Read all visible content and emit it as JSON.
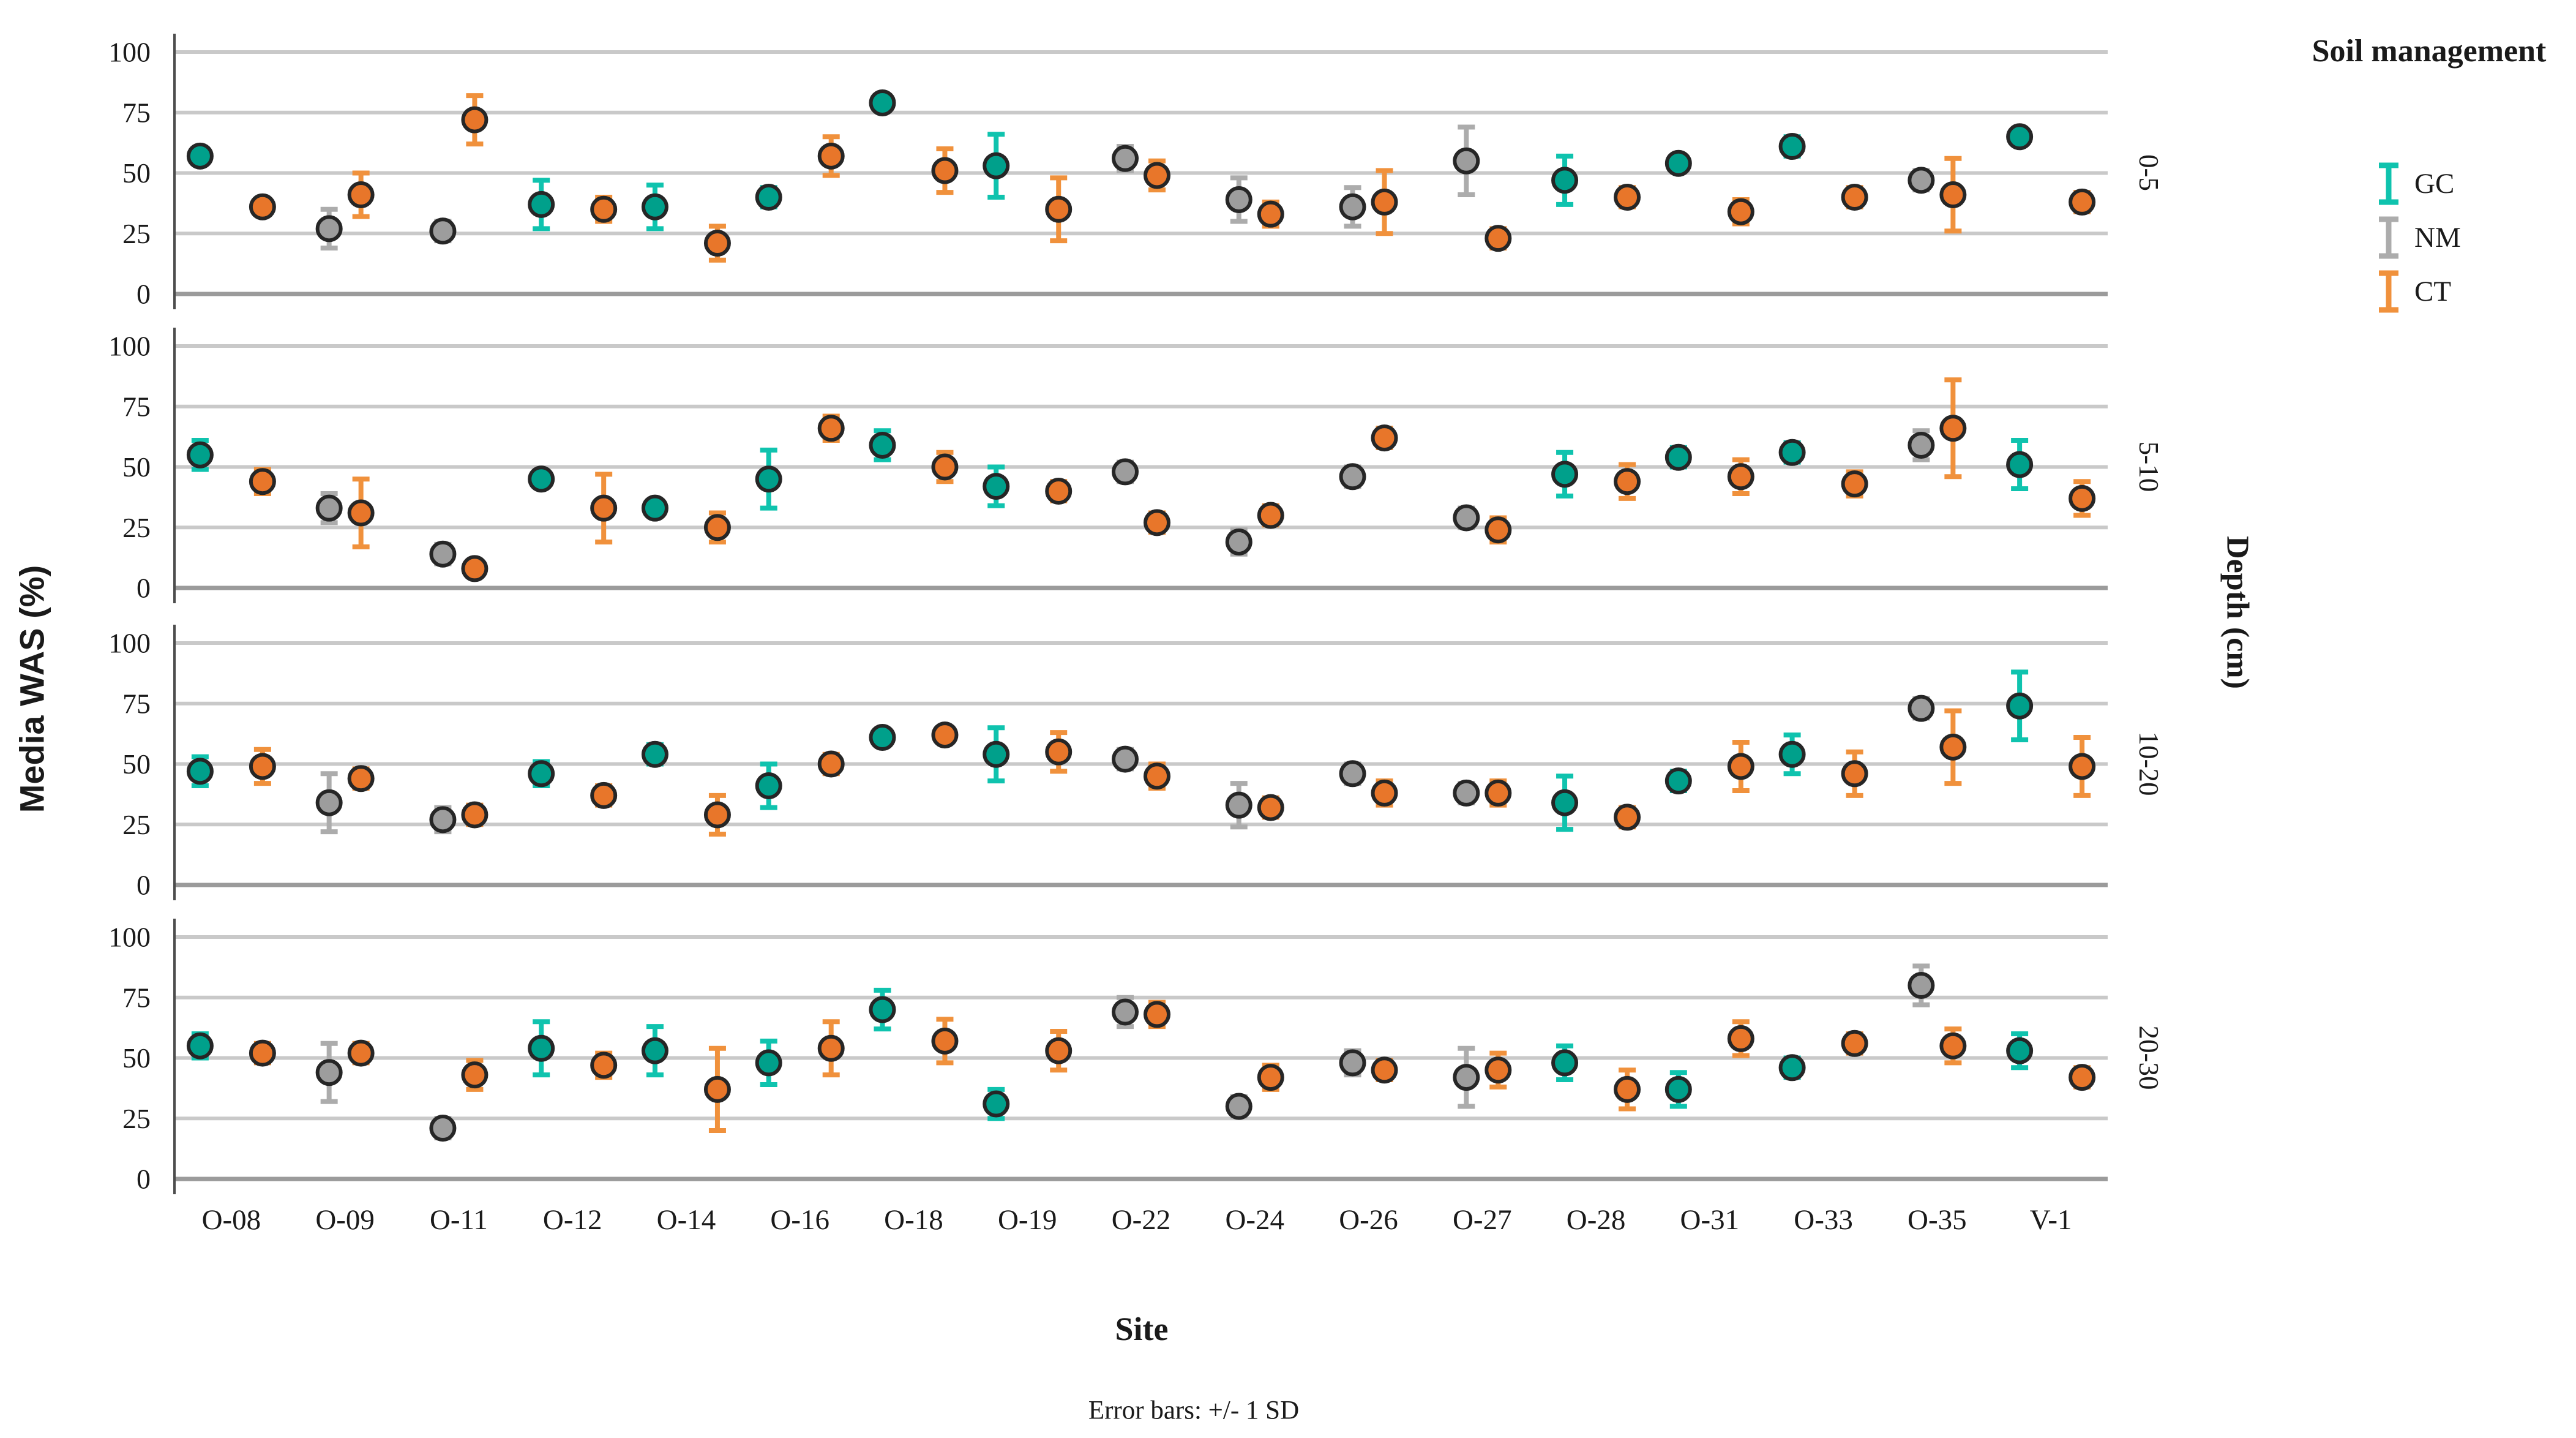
{
  "chart_data": {
    "type": "scatter",
    "title": "",
    "xlabel": "Site",
    "ylabel": "Media WAS (%)",
    "right_axis_label": "Depth (cm)",
    "footnote": "Error bars: +/- 1 SD",
    "ylim": [
      0,
      100
    ],
    "yticks": [
      0,
      25,
      50,
      75,
      100
    ],
    "grid": true,
    "legend": {
      "title": "Soil management",
      "position": "top-right",
      "entries": [
        {
          "label": "GC",
          "color": "#00A08B",
          "bar_color": "#0FC3AE"
        },
        {
          "label": "NM",
          "color": "#9D9D9D",
          "bar_color": "#ACACAC"
        },
        {
          "label": "CT",
          "color": "#E8762A",
          "bar_color": "#F0913C"
        }
      ]
    },
    "groups": {
      "GC": {
        "fill": "#00A08B",
        "bar": "#0FC3AE"
      },
      "NM": {
        "fill": "#9D9D9D",
        "bar": "#ACACAC"
      },
      "CT": {
        "fill": "#E8762A",
        "bar": "#F0913C"
      }
    },
    "sites": [
      "O-08",
      "O-09",
      "O-11",
      "O-12",
      "O-14",
      "O-16",
      "O-18",
      "O-19",
      "O-22",
      "O-24",
      "O-26",
      "O-27",
      "O-28",
      "O-31",
      "O-33",
      "O-35",
      "V-1"
    ],
    "panels": [
      {
        "depth": "0-5",
        "points": [
          {
            "site": "O-08",
            "group": "GC",
            "mean": 57,
            "sd": 3
          },
          {
            "site": "O-08",
            "group": "CT",
            "mean": 36,
            "sd": 3
          },
          {
            "site": "O-09",
            "group": "NM",
            "mean": 27,
            "sd": 8
          },
          {
            "site": "O-09",
            "group": "CT",
            "mean": 41,
            "sd": 9
          },
          {
            "site": "O-11",
            "group": "NM",
            "mean": 26,
            "sd": 4
          },
          {
            "site": "O-11",
            "group": "CT",
            "mean": 72,
            "sd": 10
          },
          {
            "site": "O-12",
            "group": "GC",
            "mean": 37,
            "sd": 10
          },
          {
            "site": "O-12",
            "group": "CT",
            "mean": 35,
            "sd": 5
          },
          {
            "site": "O-14",
            "group": "GC",
            "mean": 36,
            "sd": 9
          },
          {
            "site": "O-14",
            "group": "CT",
            "mean": 21,
            "sd": 7
          },
          {
            "site": "O-16",
            "group": "GC",
            "mean": 40,
            "sd": 4
          },
          {
            "site": "O-16",
            "group": "CT",
            "mean": 57,
            "sd": 8
          },
          {
            "site": "O-18",
            "group": "GC",
            "mean": 79,
            "sd": 3
          },
          {
            "site": "O-18",
            "group": "CT",
            "mean": 51,
            "sd": 9
          },
          {
            "site": "O-19",
            "group": "GC",
            "mean": 53,
            "sd": 13
          },
          {
            "site": "O-19",
            "group": "CT",
            "mean": 35,
            "sd": 13
          },
          {
            "site": "O-22",
            "group": "NM",
            "mean": 56,
            "sd": 5
          },
          {
            "site": "O-22",
            "group": "CT",
            "mean": 49,
            "sd": 6
          },
          {
            "site": "O-24",
            "group": "NM",
            "mean": 39,
            "sd": 9
          },
          {
            "site": "O-24",
            "group": "CT",
            "mean": 33,
            "sd": 5
          },
          {
            "site": "O-26",
            "group": "NM",
            "mean": 36,
            "sd": 8
          },
          {
            "site": "O-26",
            "group": "CT",
            "mean": 38,
            "sd": 13
          },
          {
            "site": "O-27",
            "group": "NM",
            "mean": 55,
            "sd": 14
          },
          {
            "site": "O-27",
            "group": "CT",
            "mean": 23,
            "sd": 4
          },
          {
            "site": "O-28",
            "group": "GC",
            "mean": 47,
            "sd": 10
          },
          {
            "site": "O-28",
            "group": "CT",
            "mean": 40,
            "sd": 4
          },
          {
            "site": "O-31",
            "group": "GC",
            "mean": 54,
            "sd": 3
          },
          {
            "site": "O-31",
            "group": "CT",
            "mean": 34,
            "sd": 5
          },
          {
            "site": "O-33",
            "group": "GC",
            "mean": 61,
            "sd": 4
          },
          {
            "site": "O-33",
            "group": "CT",
            "mean": 40,
            "sd": 4
          },
          {
            "site": "O-35",
            "group": "NM",
            "mean": 47,
            "sd": 4
          },
          {
            "site": "O-35",
            "group": "CT",
            "mean": 41,
            "sd": 15
          },
          {
            "site": "V-1",
            "group": "GC",
            "mean": 65,
            "sd": 3
          },
          {
            "site": "V-1",
            "group": "CT",
            "mean": 38,
            "sd": 4
          }
        ]
      },
      {
        "depth": "5-10",
        "points": [
          {
            "site": "O-08",
            "group": "GC",
            "mean": 55,
            "sd": 6
          },
          {
            "site": "O-08",
            "group": "CT",
            "mean": 44,
            "sd": 5
          },
          {
            "site": "O-09",
            "group": "NM",
            "mean": 33,
            "sd": 6
          },
          {
            "site": "O-09",
            "group": "CT",
            "mean": 31,
            "sd": 14
          },
          {
            "site": "O-11",
            "group": "NM",
            "mean": 14,
            "sd": 4
          },
          {
            "site": "O-11",
            "group": "CT",
            "mean": 8,
            "sd": 3
          },
          {
            "site": "O-12",
            "group": "GC",
            "mean": 45,
            "sd": 3
          },
          {
            "site": "O-12",
            "group": "CT",
            "mean": 33,
            "sd": 14
          },
          {
            "site": "O-14",
            "group": "GC",
            "mean": 33,
            "sd": 3
          },
          {
            "site": "O-14",
            "group": "CT",
            "mean": 25,
            "sd": 6
          },
          {
            "site": "O-16",
            "group": "GC",
            "mean": 45,
            "sd": 12
          },
          {
            "site": "O-16",
            "group": "CT",
            "mean": 66,
            "sd": 5
          },
          {
            "site": "O-18",
            "group": "GC",
            "mean": 59,
            "sd": 6
          },
          {
            "site": "O-18",
            "group": "CT",
            "mean": 50,
            "sd": 6
          },
          {
            "site": "O-19",
            "group": "GC",
            "mean": 42,
            "sd": 8
          },
          {
            "site": "O-19",
            "group": "CT",
            "mean": 40,
            "sd": 4
          },
          {
            "site": "O-22",
            "group": "NM",
            "mean": 48,
            "sd": 4
          },
          {
            "site": "O-22",
            "group": "CT",
            "mean": 27,
            "sd": 4
          },
          {
            "site": "O-24",
            "group": "NM",
            "mean": 19,
            "sd": 5
          },
          {
            "site": "O-24",
            "group": "CT",
            "mean": 30,
            "sd": 4
          },
          {
            "site": "O-26",
            "group": "NM",
            "mean": 46,
            "sd": 4
          },
          {
            "site": "O-26",
            "group": "CT",
            "mean": 62,
            "sd": 4
          },
          {
            "site": "O-27",
            "group": "NM",
            "mean": 29,
            "sd": 4
          },
          {
            "site": "O-27",
            "group": "CT",
            "mean": 24,
            "sd": 5
          },
          {
            "site": "O-28",
            "group": "GC",
            "mean": 47,
            "sd": 9
          },
          {
            "site": "O-28",
            "group": "CT",
            "mean": 44,
            "sd": 7
          },
          {
            "site": "O-31",
            "group": "GC",
            "mean": 54,
            "sd": 4
          },
          {
            "site": "O-31",
            "group": "CT",
            "mean": 46,
            "sd": 7
          },
          {
            "site": "O-33",
            "group": "GC",
            "mean": 56,
            "sd": 4
          },
          {
            "site": "O-33",
            "group": "CT",
            "mean": 43,
            "sd": 5
          },
          {
            "site": "O-35",
            "group": "NM",
            "mean": 59,
            "sd": 6
          },
          {
            "site": "O-35",
            "group": "CT",
            "mean": 66,
            "sd": 20
          },
          {
            "site": "V-1",
            "group": "GC",
            "mean": 51,
            "sd": 10
          },
          {
            "site": "V-1",
            "group": "CT",
            "mean": 37,
            "sd": 7
          }
        ]
      },
      {
        "depth": "10-20",
        "points": [
          {
            "site": "O-08",
            "group": "GC",
            "mean": 47,
            "sd": 6
          },
          {
            "site": "O-08",
            "group": "CT",
            "mean": 49,
            "sd": 7
          },
          {
            "site": "O-09",
            "group": "NM",
            "mean": 34,
            "sd": 12
          },
          {
            "site": "O-09",
            "group": "CT",
            "mean": 44,
            "sd": 4
          },
          {
            "site": "O-11",
            "group": "NM",
            "mean": 27,
            "sd": 5
          },
          {
            "site": "O-11",
            "group": "CT",
            "mean": 29,
            "sd": 4
          },
          {
            "site": "O-12",
            "group": "GC",
            "mean": 46,
            "sd": 5
          },
          {
            "site": "O-12",
            "group": "CT",
            "mean": 37,
            "sd": 4
          },
          {
            "site": "O-14",
            "group": "GC",
            "mean": 54,
            "sd": 4
          },
          {
            "site": "O-14",
            "group": "CT",
            "mean": 29,
            "sd": 8
          },
          {
            "site": "O-16",
            "group": "GC",
            "mean": 41,
            "sd": 9
          },
          {
            "site": "O-16",
            "group": "CT",
            "mean": 50,
            "sd": 4
          },
          {
            "site": "O-18",
            "group": "GC",
            "mean": 61,
            "sd": 3
          },
          {
            "site": "O-18",
            "group": "CT",
            "mean": 62,
            "sd": 3
          },
          {
            "site": "O-19",
            "group": "GC",
            "mean": 54,
            "sd": 11
          },
          {
            "site": "O-19",
            "group": "CT",
            "mean": 55,
            "sd": 8
          },
          {
            "site": "O-22",
            "group": "NM",
            "mean": 52,
            "sd": 4
          },
          {
            "site": "O-22",
            "group": "CT",
            "mean": 45,
            "sd": 5
          },
          {
            "site": "O-24",
            "group": "NM",
            "mean": 33,
            "sd": 9
          },
          {
            "site": "O-24",
            "group": "CT",
            "mean": 32,
            "sd": 4
          },
          {
            "site": "O-26",
            "group": "NM",
            "mean": 46,
            "sd": 4
          },
          {
            "site": "O-26",
            "group": "CT",
            "mean": 38,
            "sd": 5
          },
          {
            "site": "O-27",
            "group": "NM",
            "mean": 38,
            "sd": 4
          },
          {
            "site": "O-27",
            "group": "CT",
            "mean": 38,
            "sd": 5
          },
          {
            "site": "O-28",
            "group": "GC",
            "mean": 34,
            "sd": 11
          },
          {
            "site": "O-28",
            "group": "CT",
            "mean": 28,
            "sd": 4
          },
          {
            "site": "O-31",
            "group": "GC",
            "mean": 43,
            "sd": 4
          },
          {
            "site": "O-31",
            "group": "CT",
            "mean": 49,
            "sd": 10
          },
          {
            "site": "O-33",
            "group": "GC",
            "mean": 54,
            "sd": 8
          },
          {
            "site": "O-33",
            "group": "CT",
            "mean": 46,
            "sd": 9
          },
          {
            "site": "O-35",
            "group": "NM",
            "mean": 73,
            "sd": 4
          },
          {
            "site": "O-35",
            "group": "CT",
            "mean": 57,
            "sd": 15
          },
          {
            "site": "V-1",
            "group": "GC",
            "mean": 74,
            "sd": 14
          },
          {
            "site": "V-1",
            "group": "CT",
            "mean": 49,
            "sd": 12
          }
        ]
      },
      {
        "depth": "20-30",
        "points": [
          {
            "site": "O-08",
            "group": "GC",
            "mean": 55,
            "sd": 5
          },
          {
            "site": "O-08",
            "group": "CT",
            "mean": 52,
            "sd": 4
          },
          {
            "site": "O-09",
            "group": "NM",
            "mean": 44,
            "sd": 12
          },
          {
            "site": "O-09",
            "group": "CT",
            "mean": 52,
            "sd": 4
          },
          {
            "site": "O-11",
            "group": "NM",
            "mean": 21,
            "sd": 4
          },
          {
            "site": "O-11",
            "group": "CT",
            "mean": 43,
            "sd": 6
          },
          {
            "site": "O-12",
            "group": "GC",
            "mean": 54,
            "sd": 11
          },
          {
            "site": "O-12",
            "group": "CT",
            "mean": 47,
            "sd": 5
          },
          {
            "site": "O-14",
            "group": "GC",
            "mean": 53,
            "sd": 10
          },
          {
            "site": "O-14",
            "group": "CT",
            "mean": 37,
            "sd": 17
          },
          {
            "site": "O-16",
            "group": "GC",
            "mean": 48,
            "sd": 9
          },
          {
            "site": "O-16",
            "group": "CT",
            "mean": 54,
            "sd": 11
          },
          {
            "site": "O-18",
            "group": "GC",
            "mean": 70,
            "sd": 8
          },
          {
            "site": "O-18",
            "group": "CT",
            "mean": 57,
            "sd": 9
          },
          {
            "site": "O-19",
            "group": "GC",
            "mean": 31,
            "sd": 6
          },
          {
            "site": "O-19",
            "group": "CT",
            "mean": 53,
            "sd": 8
          },
          {
            "site": "O-22",
            "group": "NM",
            "mean": 69,
            "sd": 6
          },
          {
            "site": "O-22",
            "group": "CT",
            "mean": 68,
            "sd": 5
          },
          {
            "site": "O-24",
            "group": "NM",
            "mean": 30,
            "sd": 4
          },
          {
            "site": "O-24",
            "group": "CT",
            "mean": 42,
            "sd": 5
          },
          {
            "site": "O-26",
            "group": "NM",
            "mean": 48,
            "sd": 5
          },
          {
            "site": "O-26",
            "group": "CT",
            "mean": 45,
            "sd": 4
          },
          {
            "site": "O-27",
            "group": "NM",
            "mean": 42,
            "sd": 12
          },
          {
            "site": "O-27",
            "group": "CT",
            "mean": 45,
            "sd": 7
          },
          {
            "site": "O-28",
            "group": "GC",
            "mean": 48,
            "sd": 7
          },
          {
            "site": "O-28",
            "group": "CT",
            "mean": 37,
            "sd": 8
          },
          {
            "site": "O-31",
            "group": "GC",
            "mean": 37,
            "sd": 7
          },
          {
            "site": "O-31",
            "group": "CT",
            "mean": 58,
            "sd": 7
          },
          {
            "site": "O-33",
            "group": "GC",
            "mean": 46,
            "sd": 4
          },
          {
            "site": "O-33",
            "group": "CT",
            "mean": 56,
            "sd": 4
          },
          {
            "site": "O-35",
            "group": "NM",
            "mean": 80,
            "sd": 8
          },
          {
            "site": "O-35",
            "group": "CT",
            "mean": 55,
            "sd": 7
          },
          {
            "site": "V-1",
            "group": "GC",
            "mean": 53,
            "sd": 7
          },
          {
            "site": "V-1",
            "group": "CT",
            "mean": 42,
            "sd": 4
          }
        ]
      }
    ]
  },
  "style": {
    "background": "#ffffff",
    "grid_color": "#c9c9c9",
    "zero_line_color": "#9b9b9b",
    "axis_color": "#4d4d4d",
    "marker_outline": "#262626",
    "text_color": "#1a1a1a"
  }
}
